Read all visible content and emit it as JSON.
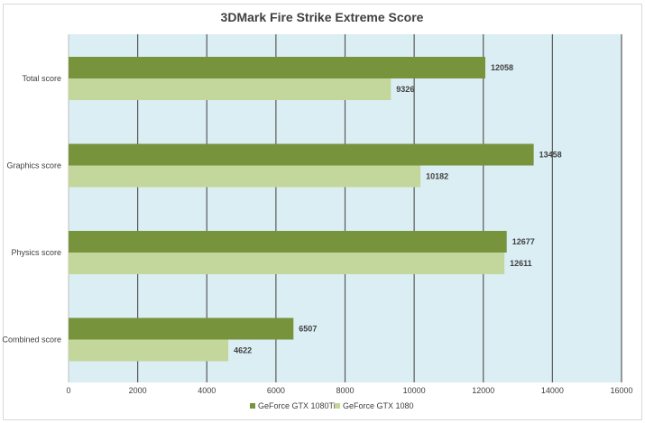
{
  "chart_data": {
    "type": "bar",
    "orientation": "horizontal",
    "title": "3DMark Fire Strike Extreme Score",
    "categories": [
      "Total score",
      "Graphics score",
      "Physics score",
      "Combined score"
    ],
    "series": [
      {
        "name": "GeForce GTX 1080Ti",
        "values": [
          12058,
          13458,
          12677,
          6507
        ],
        "color": "#77933c"
      },
      {
        "name": "GeForce GTX 1080",
        "values": [
          9326,
          10182,
          12611,
          4622
        ],
        "color": "#c3d69b"
      }
    ],
    "xlim": [
      0,
      16000
    ],
    "xticks": [
      "0",
      "2000",
      "4000",
      "6000",
      "8000",
      "10000",
      "12000",
      "14000",
      "16000"
    ],
    "grid": true,
    "legend": "bottom",
    "plot_background": "#dbeef4"
  }
}
